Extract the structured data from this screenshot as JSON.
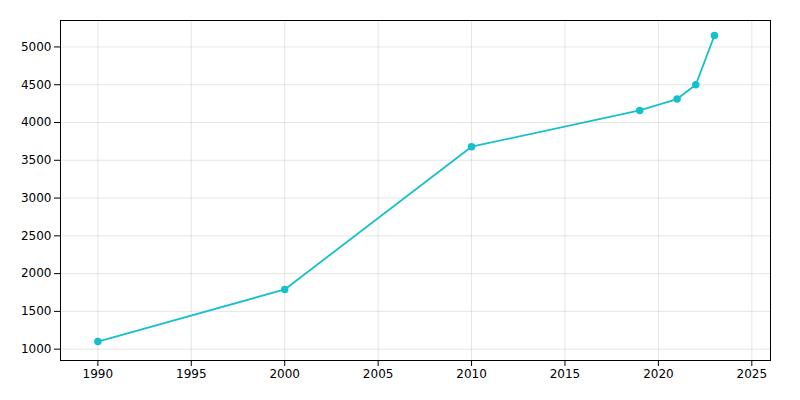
{
  "chart_data": {
    "type": "line",
    "x": [
      1990,
      2000,
      2010,
      2019,
      2021,
      2022,
      2023
    ],
    "values": [
      1100,
      1790,
      3680,
      4160,
      4310,
      4500,
      5150
    ],
    "color": "#17C0CB",
    "marker": "circle",
    "xlim": [
      1988,
      2026
    ],
    "xticks": [
      1990,
      1995,
      2000,
      2005,
      2010,
      2015,
      2020,
      2025
    ],
    "ylim": [
      850,
      5350
    ],
    "yticks": [
      1000,
      1500,
      2000,
      2500,
      3000,
      3500,
      4000,
      4500,
      5000
    ],
    "grid": true
  }
}
